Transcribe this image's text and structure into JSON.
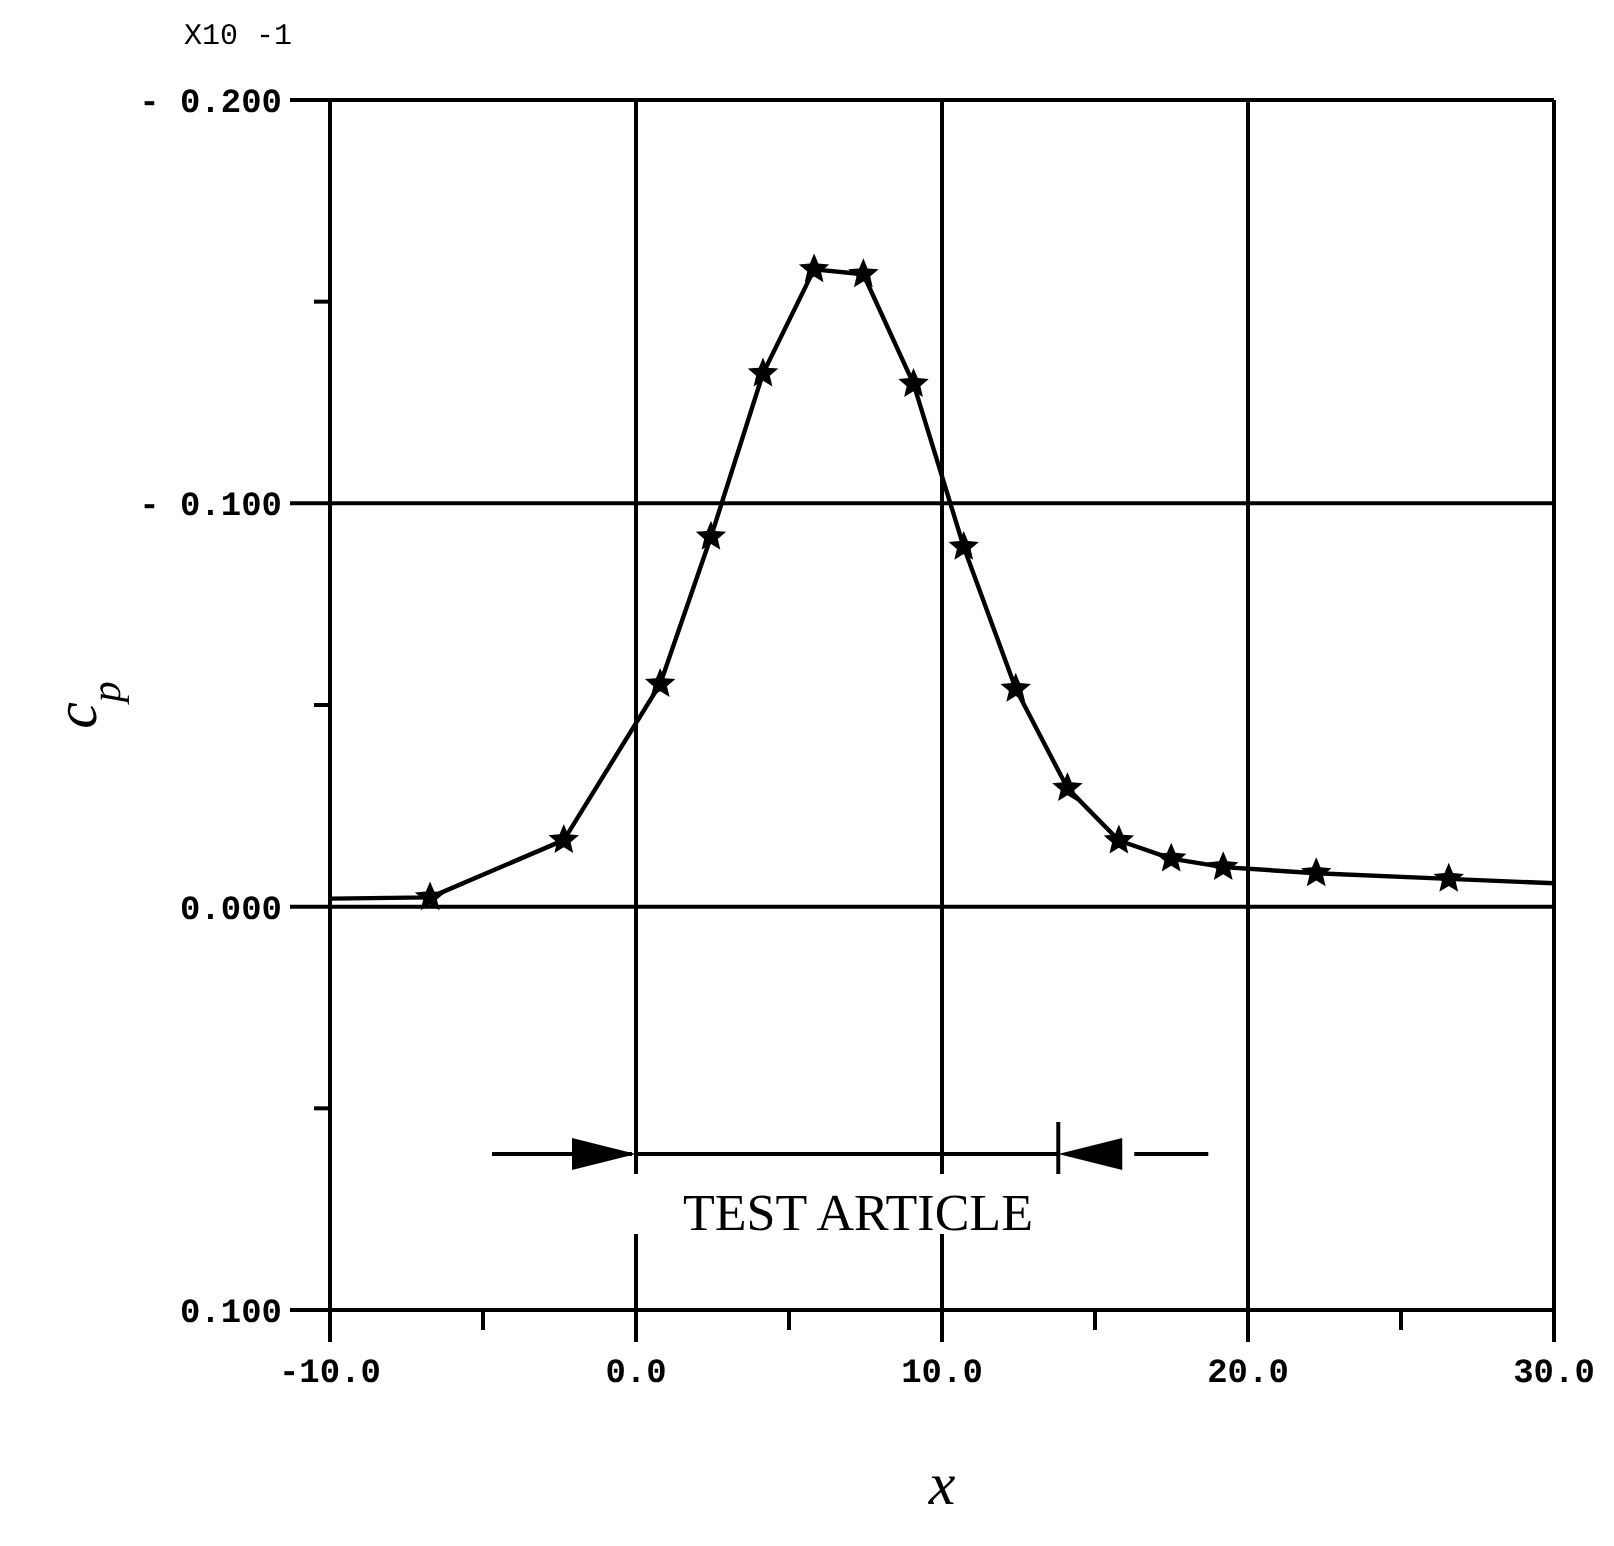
{
  "chart_data": {
    "type": "line",
    "xlabel": "x",
    "ylabel": "c$_{p}$",
    "annotations": [
      "X10 -1",
      "TEST ARTICLE"
    ],
    "xlim": [
      -10,
      30
    ],
    "xticks": [
      {
        "value": -10,
        "label": "-10.0"
      },
      {
        "value": -5,
        "label": null
      },
      {
        "value": 0,
        "label": "0.0"
      },
      {
        "value": 5,
        "label": null
      },
      {
        "value": 10,
        "label": "10.0"
      },
      {
        "value": 15,
        "label": null
      },
      {
        "value": 20,
        "label": "20.0"
      },
      {
        "value": 25,
        "label": null
      },
      {
        "value": 30,
        "label": "30.0"
      }
    ],
    "ylim": [
      0.1,
      -0.2
    ],
    "yticks": [
      {
        "value": -0.2,
        "label": "- 0.200"
      },
      {
        "value": -0.15,
        "label": null
      },
      {
        "value": -0.1,
        "label": "- 0.100"
      },
      {
        "value": -0.05,
        "label": null
      },
      {
        "value": 0,
        "label": "0.000"
      },
      {
        "value": 0.05,
        "label": null
      },
      {
        "value": 0.1,
        "label": "0.100"
      }
    ],
    "grid": true,
    "series": [
      {
        "marker": "none",
        "color": "#000000",
        "x": [
          -10,
          -6.73,
          -2.36,
          0.79,
          2.45,
          4.15,
          5.82,
          7.43,
          9.07,
          10.71,
          12.41,
          14.1,
          15.78,
          17.49,
          19.19,
          22.23,
          26.56,
          30
        ],
        "values": [
          -0.002,
          -0.0023,
          -0.0165,
          -0.0552,
          -0.0917,
          -0.1322,
          -0.158,
          -0.1568,
          -0.1296,
          -0.0892,
          -0.054,
          -0.0294,
          -0.0164,
          -0.0119,
          -0.0098,
          -0.0083,
          -0.0069,
          -0.0058
        ]
      },
      {
        "type": "scatter",
        "marker": "star",
        "color": "#000000",
        "x": [
          -6.73,
          -2.36,
          0.79,
          2.45,
          4.15,
          5.82,
          7.43,
          9.07,
          10.71,
          12.41,
          14.1,
          15.78,
          17.49,
          19.19,
          22.23,
          26.56
        ],
        "values": [
          -0.0023,
          -0.0165,
          -0.0552,
          -0.0917,
          -0.1322,
          -0.158,
          -0.1568,
          -0.1296,
          -0.0892,
          -0.054,
          -0.0294,
          -0.0164,
          -0.0119,
          -0.0098,
          -0.0083,
          -0.0069
        ]
      }
    ]
  }
}
